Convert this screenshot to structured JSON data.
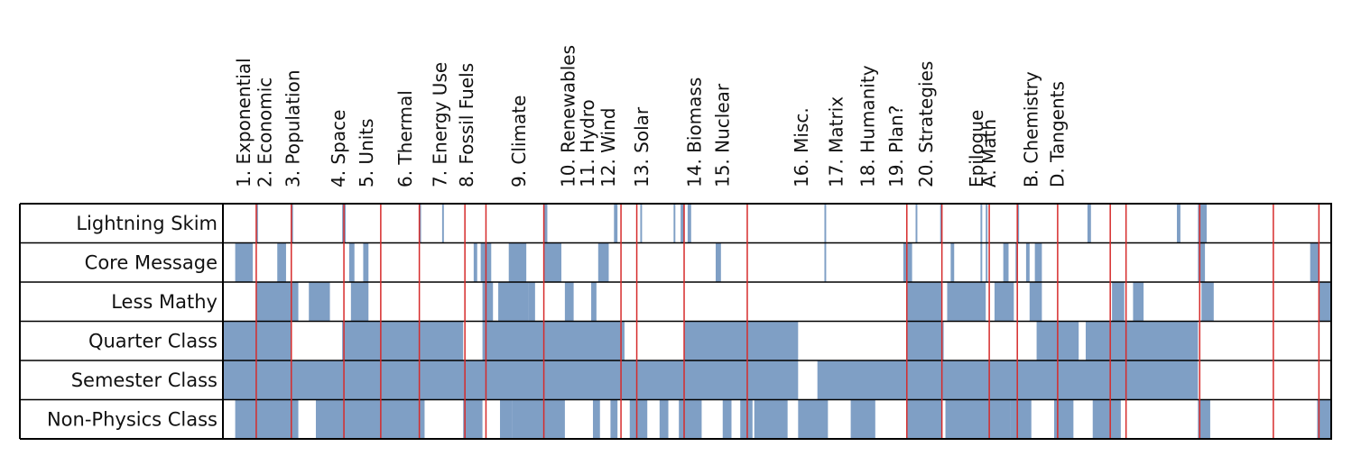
{
  "colors": {
    "fill": "#7f9fc5",
    "divider": "#d62b2b",
    "border": "#000000"
  },
  "chapters": [
    {
      "label": "1. Exponential",
      "start": 0
    },
    {
      "label": "2. Economic",
      "start": 12
    },
    {
      "label": "3. Population",
      "start": 28
    },
    {
      "label": "4. Space",
      "start": 54
    },
    {
      "label": "5. Units",
      "start": 70
    },
    {
      "label": "6. Thermal",
      "start": 92
    },
    {
      "label": "7. Energy Use",
      "start": 112
    },
    {
      "label": "8. Fossil Fuels",
      "start": 127
    },
    {
      "label": "9. Climate",
      "start": 157
    },
    {
      "label": "10. Renewables",
      "start": 185
    },
    {
      "label": "11. Hydro",
      "start": 196
    },
    {
      "label": "12. Wind",
      "start": 208
    },
    {
      "label": "13. Solar",
      "start": 227
    },
    {
      "label": "14. Biomass",
      "start": 257
    },
    {
      "label": "15. Nuclear",
      "start": 273
    },
    {
      "label": "16. Misc.",
      "start": 318
    },
    {
      "label": "17. Matrix",
      "start": 338
    },
    {
      "label": "18. Humanity",
      "start": 356
    },
    {
      "label": "19. Plan?",
      "start": 372
    },
    {
      "label": "20. Strategies",
      "start": 389
    },
    {
      "label": "Epilogue",
      "start": 418
    },
    {
      "label": "A. Math",
      "start": 425
    },
    {
      "label": "B. Chemistry",
      "start": 449
    },
    {
      "label": "D. Tangents",
      "start": 464
    }
  ],
  "dividers": [
    19,
    39,
    69,
    90,
    112,
    138,
    150,
    183,
    227,
    236,
    263,
    299,
    390,
    410,
    437,
    453,
    476,
    506,
    515,
    557,
    599,
    625
  ],
  "total_units": 530,
  "rows": [
    {
      "label": "Lightning Skim",
      "fills": [
        [
          19,
          20
        ],
        [
          39,
          40
        ],
        [
          68,
          69
        ],
        [
          69,
          70
        ],
        [
          112,
          113
        ],
        [
          125,
          126
        ],
        [
          183,
          185
        ],
        [
          223,
          225
        ],
        [
          238,
          239
        ],
        [
          257,
          258
        ],
        [
          261,
          263
        ],
        [
          265,
          267
        ],
        [
          343,
          344
        ],
        [
          395,
          396
        ],
        [
          409,
          410
        ],
        [
          432,
          433
        ],
        [
          435,
          436
        ],
        [
          453,
          454
        ],
        [
          493,
          495
        ],
        [
          544,
          546
        ],
        [
          556,
          561
        ]
      ]
    },
    {
      "label": "Core Message",
      "fills": [
        [
          7,
          17
        ],
        [
          31,
          36
        ],
        [
          72,
          75
        ],
        [
          80,
          83
        ],
        [
          143,
          145
        ],
        [
          147,
          153
        ],
        [
          163,
          173
        ],
        [
          183,
          193
        ],
        [
          214,
          220
        ],
        [
          281,
          284
        ],
        [
          343,
          344
        ],
        [
          388,
          393
        ],
        [
          415,
          417
        ],
        [
          432,
          433
        ],
        [
          435,
          436
        ],
        [
          445,
          448
        ],
        [
          452,
          453
        ],
        [
          458,
          460
        ],
        [
          463,
          467
        ],
        [
          556,
          560
        ],
        [
          620,
          625
        ]
      ]
    },
    {
      "label": "Less Mathy",
      "fills": [
        [
          19,
          39
        ],
        [
          39,
          43
        ],
        [
          49,
          61
        ],
        [
          73,
          83
        ],
        [
          148,
          154
        ],
        [
          157,
          174
        ],
        [
          174,
          178
        ],
        [
          195,
          200
        ],
        [
          210,
          213
        ],
        [
          390,
          410
        ],
        [
          413,
          435
        ],
        [
          440,
          451
        ],
        [
          460,
          467
        ],
        [
          507,
          514
        ],
        [
          519,
          525
        ],
        [
          558,
          565
        ],
        [
          625,
          632
        ]
      ]
    },
    {
      "label": "Quarter Class",
      "fills": [
        [
          0,
          39
        ],
        [
          68,
          137
        ],
        [
          148,
          229
        ],
        [
          263,
          328
        ],
        [
          390,
          410
        ],
        [
          410,
          411
        ],
        [
          464,
          488
        ],
        [
          492,
          556
        ]
      ]
    },
    {
      "label": "Semester Class",
      "fills": [
        [
          0,
          328
        ],
        [
          339,
          556
        ]
      ]
    },
    {
      "label": "Non-Physics Class",
      "fills": [
        [
          7,
          19
        ],
        [
          19,
          39
        ],
        [
          39,
          43
        ],
        [
          53,
          90
        ],
        [
          90,
          115
        ],
        [
          137,
          148
        ],
        [
          158,
          165
        ],
        [
          165,
          195
        ],
        [
          211,
          215
        ],
        [
          221,
          225
        ],
        [
          232,
          242
        ],
        [
          249,
          254
        ],
        [
          260,
          273
        ],
        [
          285,
          290
        ],
        [
          295,
          302
        ],
        [
          303,
          322
        ],
        [
          328,
          345
        ],
        [
          358,
          372
        ],
        [
          390,
          410
        ],
        [
          412,
          449
        ],
        [
          449,
          461
        ],
        [
          474,
          485
        ],
        [
          496,
          512
        ],
        [
          556,
          563
        ],
        [
          624,
          632
        ]
      ]
    }
  ]
}
